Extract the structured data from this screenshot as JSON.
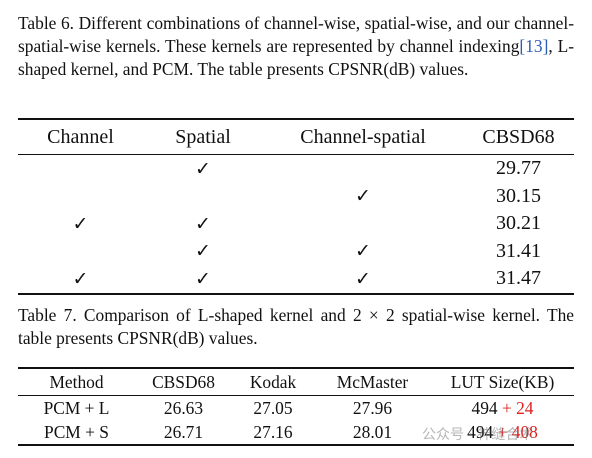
{
  "table6": {
    "caption": {
      "prefix": "Table 6. Different combinations of channel-wise, spatial-wise, and our channel-spatial-wise kernels. These kernels are represented by channel indexing",
      "ref": "[13]",
      "suffix": ", L-shaped kernel, and PCM. The table presents CPSNR(dB) values."
    },
    "headers": [
      "Channel",
      "Spatial",
      "Channel-spatial",
      "CBSD68"
    ],
    "check_mark": "✓",
    "rows": [
      {
        "channel": "",
        "spatial": "✓",
        "channel_spatial": "",
        "cbsd68": "29.77"
      },
      {
        "channel": "",
        "spatial": "",
        "channel_spatial": "✓",
        "cbsd68": "30.15"
      },
      {
        "channel": "✓",
        "spatial": "✓",
        "channel_spatial": "",
        "cbsd68": "30.21"
      },
      {
        "channel": "",
        "spatial": "✓",
        "channel_spatial": "✓",
        "cbsd68": "31.41"
      },
      {
        "channel": "✓",
        "spatial": "✓",
        "channel_spatial": "✓",
        "cbsd68": "31.47"
      }
    ]
  },
  "table7": {
    "caption": "Table 7. Comparison of L-shaped kernel and 2 × 2 spatial-wise kernel. The table presents CPSNR(dB) values.",
    "headers": [
      "Method",
      "CBSD68",
      "Kodak",
      "McMaster",
      "LUT Size(KB)"
    ],
    "rows": [
      {
        "method": "PCM + L",
        "cbsd68": "26.63",
        "kodak": "27.05",
        "mcmaster": "27.96",
        "lut_base": "494",
        "lut_extra": "+ 24"
      },
      {
        "method": "PCM + S",
        "cbsd68": "26.71",
        "kodak": "27.16",
        "mcmaster": "28.01",
        "lut_base": "494",
        "lut_extra": "+ 408"
      }
    ],
    "highlight_color": "#e02020"
  },
  "watermark": "公众号 · 神缝合术"
}
